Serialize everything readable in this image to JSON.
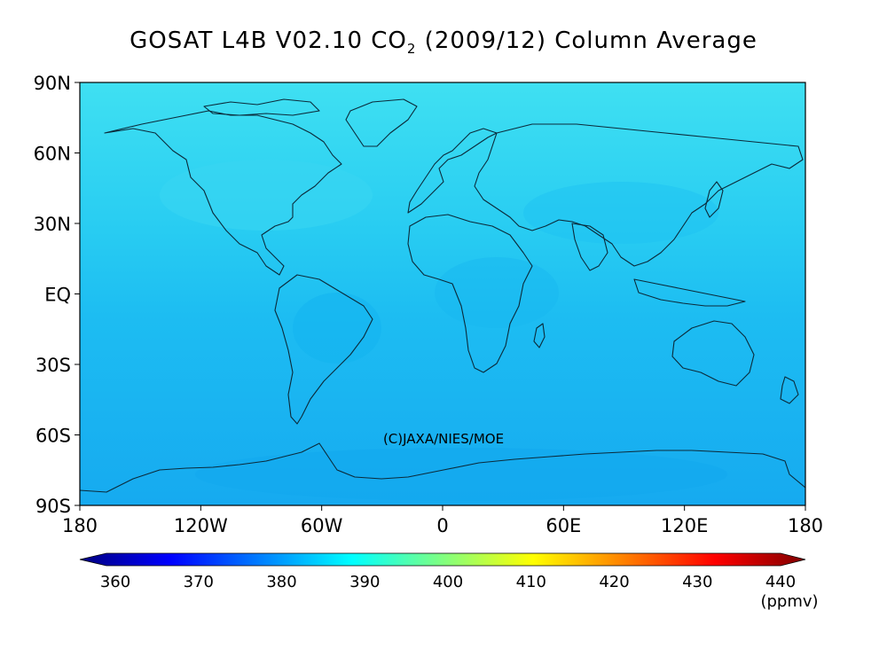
{
  "title_main": "GOSAT L4B V02.10 CO",
  "title_sub": "2",
  "title_rest": " (2009/12) Column Average",
  "copyright": "(C)JAXA/NIES/MOE",
  "map": {
    "lat_ticks": [
      "90N",
      "60N",
      "30N",
      "EQ",
      "30S",
      "60S",
      "90S"
    ],
    "lon_ticks": [
      "180",
      "120W",
      "60W",
      "0",
      "60E",
      "120E",
      "180"
    ],
    "lat_values": [
      90,
      60,
      30,
      0,
      -30,
      -60,
      -90
    ],
    "lon_values": [
      -180,
      -120,
      -60,
      0,
      60,
      120,
      180
    ]
  },
  "colorbar": {
    "labels": [
      "360",
      "370",
      "380",
      "390",
      "400",
      "410",
      "420",
      "430",
      "440"
    ],
    "unit": "(ppmv)",
    "range": [
      360,
      440
    ],
    "colors": [
      "#00007f",
      "#0000ff",
      "#0080ff",
      "#00ffff",
      "#80ff80",
      "#ffff00",
      "#ff8000",
      "#ff0000",
      "#7f0000"
    ]
  },
  "colors": {
    "ocean_base": "#20c4f2",
    "high_lat": "#3fe0f2",
    "low_south": "#16aaf0"
  }
}
